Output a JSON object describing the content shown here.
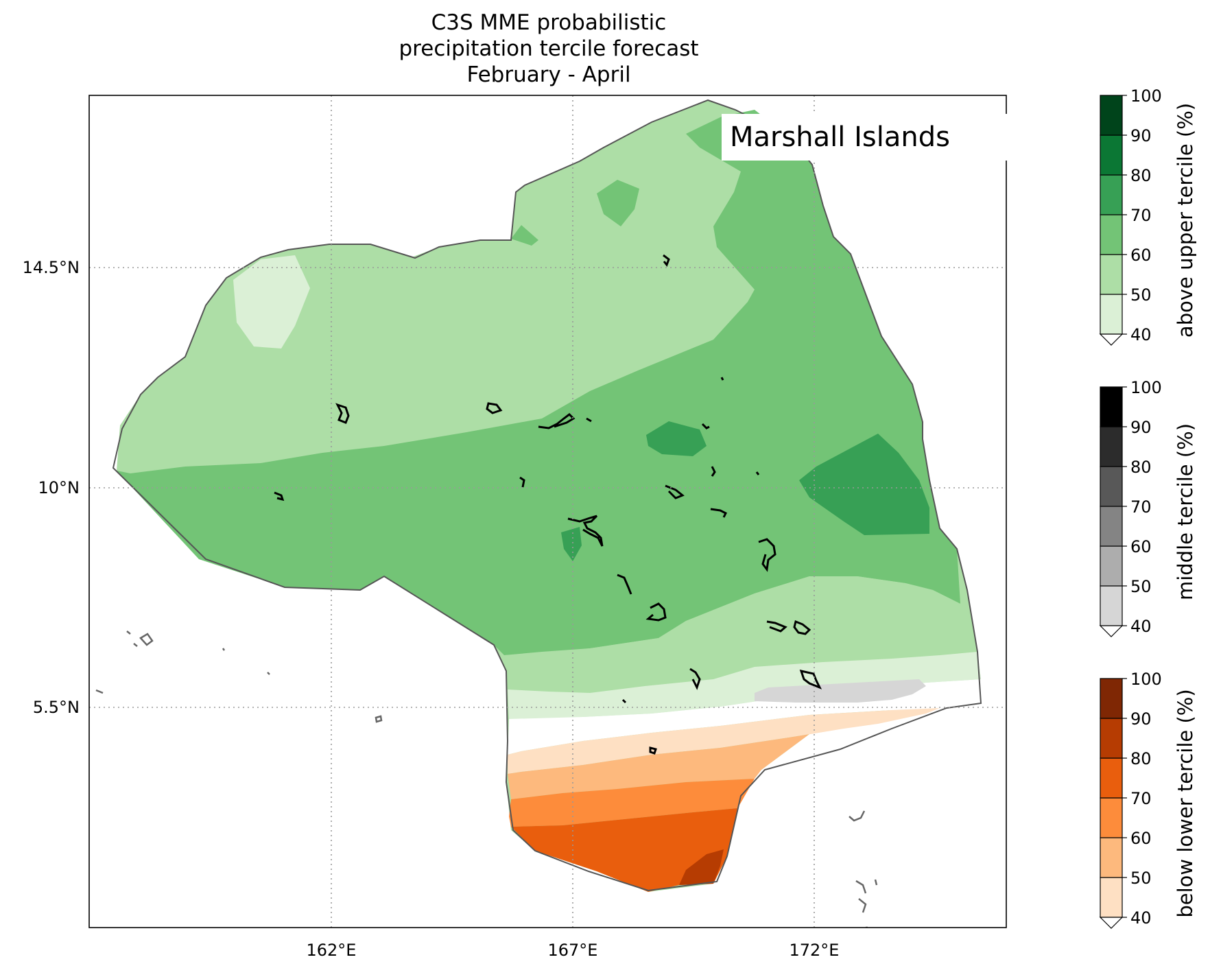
{
  "title_lines": [
    "C3S MME probabilistic",
    "precipitation tercile forecast",
    "February - April"
  ],
  "region_label": "Marshall Islands",
  "axes": {
    "lon_ticks": [
      "162°E",
      "167°E",
      "172°E"
    ],
    "lat_ticks": [
      "14.5°N",
      "10°N",
      "5.5°N"
    ],
    "gridlines": "dotted"
  },
  "colorbars": [
    {
      "id": "above",
      "title": "above upper tercile (%)",
      "ticks": [
        "40",
        "50",
        "60",
        "70",
        "80",
        "90",
        "100"
      ],
      "colors": [
        "#dbf0d6",
        "#addea6",
        "#73c476",
        "#37a055",
        "#0b7734",
        "#00441b"
      ]
    },
    {
      "id": "middle",
      "title": "middle tercile (%)",
      "ticks": [
        "40",
        "50",
        "60",
        "70",
        "80",
        "90",
        "100"
      ],
      "colors": [
        "#d6d6d6",
        "#adadad",
        "#848484",
        "#585858",
        "#2c2c2c",
        "#000000"
      ]
    },
    {
      "id": "below",
      "title": "below lower tercile (%)",
      "ticks": [
        "40",
        "50",
        "60",
        "70",
        "80",
        "90",
        "100"
      ],
      "colors": [
        "#fee0c3",
        "#fdb97d",
        "#fd8c3b",
        "#e95e0d",
        "#b63c02",
        "#7f2704"
      ]
    }
  ],
  "map_colors": {
    "above_40_50": "#dbf0d6",
    "above_50_60": "#addea6",
    "above_60_70": "#73c476",
    "above_70_80": "#37a055",
    "middle_40_50": "#d6d6d6",
    "below_40_50": "#fee0c3",
    "below_50_60": "#fdb97d",
    "below_60_70": "#fd8c3b",
    "below_70_80": "#e95e0d",
    "below_80_90": "#b63c02",
    "eez_outline": "#555555",
    "coastline": "#000000"
  }
}
